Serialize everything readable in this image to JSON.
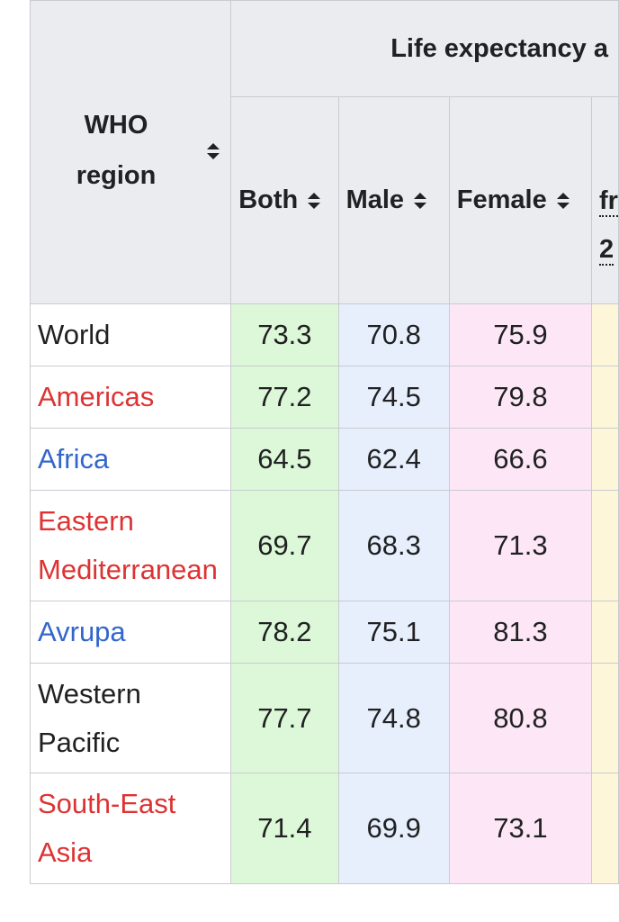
{
  "table": {
    "super_header": "Life expectancy a",
    "region_header": [
      "WHO",
      "region"
    ],
    "columns": {
      "both": "Both",
      "male": "Male",
      "female": "Female",
      "extra_partial": [
        "fr",
        "2"
      ]
    },
    "rows": [
      {
        "region": [
          "World"
        ],
        "both": "73.3",
        "male": "70.8",
        "female": "75.9"
      },
      {
        "region": [
          "Americas"
        ],
        "both": "77.2",
        "male": "74.5",
        "female": "79.8"
      },
      {
        "region": [
          "Africa"
        ],
        "both": "64.5",
        "male": "62.4",
        "female": "66.6"
      },
      {
        "region": [
          "Eastern",
          "Mediterranean"
        ],
        "both": "69.7",
        "male": "68.3",
        "female": "71.3"
      },
      {
        "region": [
          "Avrupa"
        ],
        "both": "78.2",
        "male": "75.1",
        "female": "81.3"
      },
      {
        "region": [
          "Western",
          "Pacific"
        ],
        "both": "77.7",
        "male": "74.8",
        "female": "80.8"
      },
      {
        "region": [
          "South-East",
          "Asia"
        ],
        "both": "71.4",
        "male": "69.9",
        "female": "73.1"
      }
    ]
  },
  "colors": {
    "header_bg": "#eaecf0",
    "border": "#c8ccd1",
    "both_bg": "#dcf8d8",
    "male_bg": "#e7effc",
    "female_bg": "#fde7f6",
    "extra_bg": "#fdf6d9",
    "link_red": "#d33",
    "link_blue": "#3366cc",
    "text": "#202122"
  },
  "icons": {
    "sort": "sort-updown-icon"
  }
}
